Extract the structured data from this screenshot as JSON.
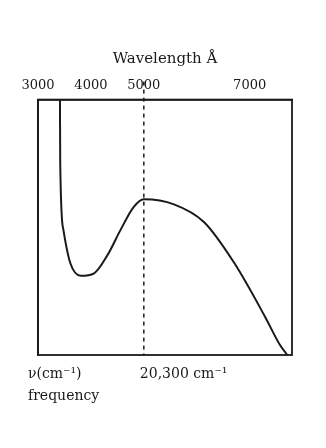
{
  "chart_data": {
    "type": "line",
    "x_label": "Wavelength Å",
    "x": [
      3415,
      3420,
      3480,
      3610,
      3810,
      4060,
      4310,
      4560,
      4810,
      5000,
      5570,
      6140,
      6710,
      7290,
      7570,
      7710
    ],
    "values": [
      1.0,
      0.75,
      0.49,
      0.36,
      0.31,
      0.32,
      0.39,
      0.49,
      0.58,
      0.61,
      0.59,
      0.52,
      0.36,
      0.15,
      0.04,
      0.0
    ],
    "color": "#1a1a1a",
    "xlim": [
      3000,
      7800
    ],
    "xticks": [
      3000,
      4000,
      5000,
      7000
    ],
    "ylim": [
      0,
      1
    ],
    "tick_labels": "x",
    "grid": false,
    "annotations": [
      {
        "x": 5000,
        "text": "20,300 cm⁻¹",
        "line_style": "dashed"
      }
    ],
    "x2_label": "ν(cm⁻¹)",
    "x2_sublabel": "frequency"
  }
}
